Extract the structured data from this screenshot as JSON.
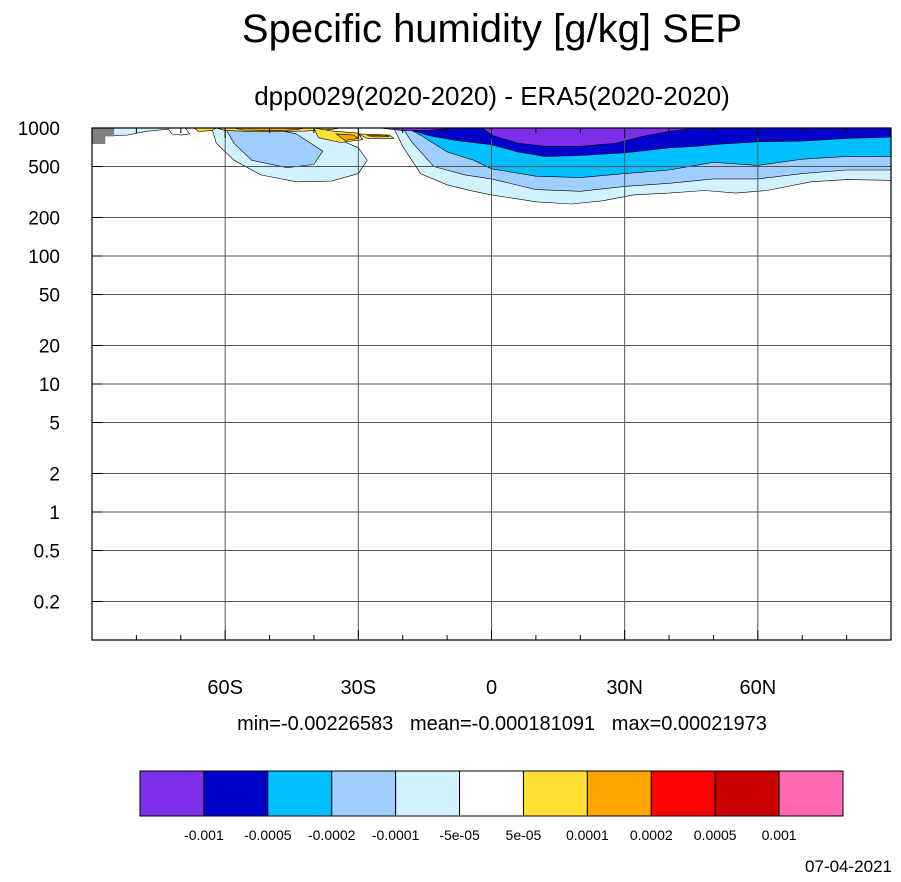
{
  "chart_data": {
    "type": "contour",
    "title": "Specific humidity [g/kg] SEP",
    "subtitle": "dpp0029(2020-2020) - ERA5(2020-2020)",
    "stats": "min=-0.00226583   mean=-0.000181091   max=0.00021973",
    "date": "07-04-2021",
    "x_axis": {
      "range": [
        -90,
        90
      ],
      "ticks": [
        {
          "value": -60,
          "label": "60S"
        },
        {
          "value": -30,
          "label": "30S"
        },
        {
          "value": 0,
          "label": "0"
        },
        {
          "value": 30,
          "label": "30N"
        },
        {
          "value": 60,
          "label": "60N"
        }
      ],
      "minor_ticks": [
        -80,
        -70,
        -50,
        -40,
        -20,
        -10,
        10,
        20,
        40,
        50,
        70,
        80
      ]
    },
    "y_axis": {
      "scale": "log",
      "reversed": true,
      "range": [
        1000,
        0.1
      ],
      "ticks": [
        {
          "value": 0.2,
          "label": "0.2"
        },
        {
          "value": 0.5,
          "label": "0.5"
        },
        {
          "value": 1,
          "label": "1"
        },
        {
          "value": 2,
          "label": "2"
        },
        {
          "value": 5,
          "label": "5"
        },
        {
          "value": 10,
          "label": "10"
        },
        {
          "value": 20,
          "label": "20"
        },
        {
          "value": 50,
          "label": "50"
        },
        {
          "value": 100,
          "label": "100"
        },
        {
          "value": 200,
          "label": "200"
        },
        {
          "value": 500,
          "label": "500"
        },
        {
          "value": 1000,
          "label": "1000"
        }
      ]
    },
    "grid": true,
    "colorbar": {
      "placement": "bottom",
      "colors": [
        "#7e2de8",
        "#0000cd",
        "#00bfff",
        "#a0cfff",
        "#d2f2ff",
        "#ffffff",
        "#ffe033",
        "#ffa500",
        "#ff0000",
        "#c80000",
        "#ff69b4"
      ],
      "labels": [
        "-0.001",
        "-0.0005",
        "-0.0002",
        "-0.0001",
        "-5e-05",
        "5e-05",
        "0.0001",
        "0.0002",
        "0.0005",
        "0.001"
      ]
    },
    "filled_regions": [
      {
        "color": "#d2f2ff",
        "points": [
          [
            -90,
            1000
          ],
          [
            -88,
            870
          ],
          [
            -82,
            880
          ],
          [
            -78,
            940
          ],
          [
            -72,
            985
          ],
          [
            -66,
            1000
          ]
        ]
      },
      {
        "color": "#d2f2ff",
        "points": [
          [
            -63,
            1000
          ],
          [
            -62,
            760
          ],
          [
            -58,
            560
          ],
          [
            -52,
            430
          ],
          [
            -44,
            380
          ],
          [
            -36,
            385
          ],
          [
            -30,
            440
          ],
          [
            -28,
            560
          ],
          [
            -30,
            700
          ],
          [
            -36,
            860
          ],
          [
            -40,
            1000
          ]
        ]
      },
      {
        "color": "#d2f2ff",
        "points": [
          [
            -22,
            1000
          ],
          [
            -20,
            720
          ],
          [
            -16,
            440
          ],
          [
            -10,
            360
          ],
          [
            -4,
            320
          ],
          [
            0,
            300
          ],
          [
            10,
            265
          ],
          [
            18,
            255
          ],
          [
            25,
            270
          ],
          [
            32,
            300
          ],
          [
            40,
            310
          ],
          [
            48,
            325
          ],
          [
            55,
            310
          ],
          [
            62,
            325
          ],
          [
            72,
            380
          ],
          [
            80,
            395
          ],
          [
            90,
            390
          ],
          [
            90,
            1000
          ]
        ]
      },
      {
        "color": "#a0cfff",
        "points": [
          [
            -60,
            1000
          ],
          [
            -58,
            760
          ],
          [
            -54,
            560
          ],
          [
            -46,
            490
          ],
          [
            -40,
            520
          ],
          [
            -38,
            660
          ],
          [
            -44,
            900
          ],
          [
            -50,
            1000
          ]
        ]
      },
      {
        "color": "#a0cfff",
        "points": [
          [
            -20,
            1000
          ],
          [
            -18,
            780
          ],
          [
            -13,
            500
          ],
          [
            -6,
            430
          ],
          [
            0,
            400
          ],
          [
            10,
            330
          ],
          [
            20,
            320
          ],
          [
            30,
            350
          ],
          [
            40,
            370
          ],
          [
            50,
            400
          ],
          [
            60,
            400
          ],
          [
            70,
            440
          ],
          [
            80,
            470
          ],
          [
            90,
            470
          ],
          [
            90,
            1000
          ]
        ]
      },
      {
        "color": "#00bfff",
        "points": [
          [
            -19,
            1000
          ],
          [
            -16,
            880
          ],
          [
            -10,
            650
          ],
          [
            -4,
            560
          ],
          [
            0,
            480
          ],
          [
            10,
            420
          ],
          [
            20,
            410
          ],
          [
            30,
            440
          ],
          [
            40,
            470
          ],
          [
            50,
            540
          ],
          [
            60,
            510
          ],
          [
            70,
            570
          ],
          [
            80,
            600
          ],
          [
            90,
            600
          ],
          [
            90,
            1000
          ]
        ]
      },
      {
        "color": "#0000cd",
        "points": [
          [
            -24,
            1000
          ],
          [
            -18,
            960
          ],
          [
            -14,
            870
          ],
          [
            -8,
            800
          ],
          [
            0,
            740
          ],
          [
            6,
            650
          ],
          [
            12,
            600
          ],
          [
            20,
            610
          ],
          [
            30,
            640
          ],
          [
            40,
            700
          ],
          [
            46,
            720
          ],
          [
            52,
            750
          ],
          [
            60,
            780
          ],
          [
            70,
            790
          ],
          [
            80,
            830
          ],
          [
            90,
            850
          ],
          [
            90,
            1000
          ]
        ]
      },
      {
        "color": "#7e2de8",
        "points": [
          [
            -25,
            1000
          ],
          [
            -20,
            955
          ],
          [
            -14,
            960
          ],
          [
            -8,
            1000
          ]
        ]
      },
      {
        "color": "#7e2de8",
        "points": [
          [
            -2,
            1000
          ],
          [
            0,
            880
          ],
          [
            6,
            760
          ],
          [
            12,
            720
          ],
          [
            20,
            720
          ],
          [
            28,
            760
          ],
          [
            34,
            860
          ],
          [
            40,
            940
          ],
          [
            46,
            1000
          ]
        ]
      },
      {
        "color": "#ffe033",
        "points": [
          [
            -67,
            1000
          ],
          [
            -66,
            940
          ],
          [
            -63,
            955
          ],
          [
            -62,
            1000
          ]
        ]
      },
      {
        "color": "#ffe033",
        "points": [
          [
            -62,
            1000
          ],
          [
            -60,
            955
          ],
          [
            -52,
            935
          ],
          [
            -42,
            945
          ],
          [
            -36,
            975
          ],
          [
            -34,
            1000
          ]
        ]
      },
      {
        "color": "#ffe033",
        "points": [
          [
            -40,
            1000
          ],
          [
            -39,
            840
          ],
          [
            -34,
            770
          ],
          [
            -29,
            810
          ],
          [
            -30,
            910
          ],
          [
            -36,
            950
          ]
        ]
      },
      {
        "color": "#ffe033",
        "points": [
          [
            -30,
            900
          ],
          [
            -28,
            830
          ],
          [
            -22,
            830
          ],
          [
            -23,
            880
          ]
        ]
      },
      {
        "color": "#ffa500",
        "points": [
          [
            -58,
            1000
          ],
          [
            -56,
            965
          ],
          [
            -48,
            955
          ],
          [
            -44,
            970
          ],
          [
            -42,
            1000
          ]
        ]
      },
      {
        "color": "#ffa500",
        "points": [
          [
            -35,
            900
          ],
          [
            -33,
            800
          ],
          [
            -30,
            830
          ],
          [
            -31,
            880
          ]
        ]
      },
      {
        "color": "#ffa500",
        "points": [
          [
            -28,
            870
          ],
          [
            -26,
            850
          ],
          [
            -23,
            860
          ],
          [
            -24,
            880
          ]
        ]
      },
      {
        "color": "#ffffff",
        "points": [
          [
            -73,
            1000
          ],
          [
            -72,
            900
          ],
          [
            -70,
            880
          ],
          [
            -68,
            900
          ],
          [
            -69,
            1000
          ]
        ]
      }
    ],
    "missing_regions": [
      {
        "color": "#808080",
        "points": [
          [
            -90,
            1000
          ],
          [
            -90,
            750
          ],
          [
            -87,
            750
          ],
          [
            -87,
            860
          ],
          [
            -85,
            860
          ],
          [
            -85,
            1000
          ]
        ]
      }
    ]
  }
}
